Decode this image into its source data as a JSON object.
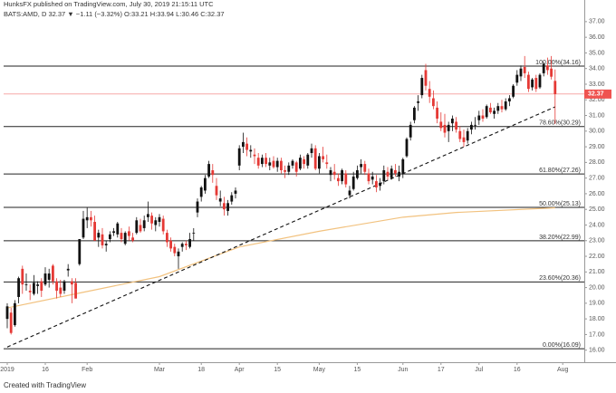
{
  "header": {
    "line1": "HunksFX published on TradingView.com, July 30, 2019 21:15:11 UTC",
    "line2": "BATS:AMD, D  32.37 ▼ −1.11 (−3.32%) O:33.21 H:33.94 L:30.46 C:32.37"
  },
  "footer": "Created with TradingView",
  "chart_data": {
    "type": "candlestick",
    "up_color": "#111111",
    "down_color": "#e53935",
    "xlim": [
      -0.95,
      151.67
    ],
    "ylim": [
      15.23,
      37.34
    ],
    "xticks": [
      {
        "value": 0,
        "label": "2019"
      },
      {
        "value": 10,
        "label": "16"
      },
      {
        "value": 21,
        "label": "Feb"
      },
      {
        "value": 40,
        "label": "Mar"
      },
      {
        "value": 51,
        "label": "18"
      },
      {
        "value": 61,
        "label": "Apr"
      },
      {
        "value": 71,
        "label": "15"
      },
      {
        "value": 82,
        "label": "May"
      },
      {
        "value": 92,
        "label": "15"
      },
      {
        "value": 104,
        "label": "Jun"
      },
      {
        "value": 114,
        "label": "17"
      },
      {
        "value": 124,
        "label": "Jul"
      },
      {
        "value": 134,
        "label": "16"
      },
      {
        "value": 146,
        "label": "Aug"
      }
    ],
    "yticks": [
      {
        "value": 16,
        "label": "16.00"
      },
      {
        "value": 17,
        "label": "17.00"
      },
      {
        "value": 18,
        "label": "18.00"
      },
      {
        "value": 19,
        "label": "19.00"
      },
      {
        "value": 20,
        "label": "20.00"
      },
      {
        "value": 21,
        "label": "21.00"
      },
      {
        "value": 22,
        "label": "22.00"
      },
      {
        "value": 23,
        "label": "23.00"
      },
      {
        "value": 24,
        "label": "24.00"
      },
      {
        "value": 25,
        "label": "25.00"
      },
      {
        "value": 26,
        "label": "26.00"
      },
      {
        "value": 27,
        "label": "27.00"
      },
      {
        "value": 28,
        "label": "28.00"
      },
      {
        "value": 29,
        "label": "29.00"
      },
      {
        "value": 30,
        "label": "30.00"
      },
      {
        "value": 31,
        "label": "31.00"
      },
      {
        "value": 32,
        "label": "32.00"
      },
      {
        "value": 33,
        "label": "33.00"
      },
      {
        "value": 34,
        "label": "34.00"
      },
      {
        "value": 35,
        "label": "35.00"
      },
      {
        "value": 36,
        "label": "36.00"
      },
      {
        "value": 37,
        "label": "37.00"
      }
    ],
    "last_price": 32.37,
    "last_price_color": "#ef5350",
    "fib_levels": [
      {
        "value": 34.16,
        "label": "100.00%(34.16)"
      },
      {
        "value": 30.29,
        "label": "78.60%(30.29)"
      },
      {
        "value": 27.26,
        "label": "61.80%(27.26)"
      },
      {
        "value": 25.13,
        "label": "50.00%(25.13)"
      },
      {
        "value": 22.99,
        "label": "38.20%(22.99)"
      },
      {
        "value": 20.36,
        "label": "23.60%(20.36)"
      },
      {
        "value": 16.09,
        "label": "0.00%(16.09)"
      }
    ],
    "trendline": {
      "x": [
        0,
        144
      ],
      "values": [
        16.2,
        31.55
      ]
    },
    "moving_average": {
      "color": "#f2c27f",
      "x": [
        0,
        20,
        40,
        61,
        82,
        104,
        118,
        144
      ],
      "values": [
        18.7,
        19.7,
        20.7,
        22.6,
        23.6,
        24.5,
        24.8,
        25.1
      ]
    },
    "candles": [
      [
        18.0,
        19.0,
        17.4,
        18.8
      ],
      [
        18.4,
        18.7,
        17.0,
        17.1
      ],
      [
        17.6,
        19.2,
        17.5,
        19.0
      ],
      [
        19.4,
        20.7,
        19.0,
        20.6
      ],
      [
        21.2,
        21.4,
        19.6,
        20.2
      ],
      [
        20.2,
        20.9,
        19.8,
        20.2
      ],
      [
        19.8,
        20.2,
        19.2,
        19.7
      ],
      [
        19.6,
        20.8,
        19.5,
        20.3
      ],
      [
        20.1,
        20.4,
        19.6,
        20.2
      ],
      [
        20.4,
        20.6,
        19.4,
        19.8
      ],
      [
        20.2,
        21.3,
        20.1,
        20.9
      ],
      [
        20.5,
        21.2,
        20.0,
        20.9
      ],
      [
        21.4,
        21.5,
        20.2,
        20.4
      ],
      [
        20.4,
        20.6,
        19.3,
        19.8
      ],
      [
        20.0,
        20.5,
        19.4,
        19.6
      ],
      [
        19.8,
        20.5,
        19.6,
        20.4
      ],
      [
        21.1,
        21.5,
        20.7,
        21.2
      ],
      [
        20.4,
        20.6,
        19.0,
        20.2
      ],
      [
        20.3,
        20.6,
        19.3,
        19.3
      ],
      [
        21.5,
        23.1,
        21.4,
        23.1
      ],
      [
        23.2,
        24.9,
        23.1,
        24.4
      ],
      [
        24.3,
        25.1,
        23.8,
        24.5
      ],
      [
        24.5,
        24.9,
        23.9,
        24.3
      ],
      [
        24.2,
        24.6,
        23.0,
        23.0
      ],
      [
        23.2,
        23.7,
        22.6,
        23.5
      ],
      [
        23.4,
        23.8,
        22.5,
        22.7
      ],
      [
        22.7,
        23.0,
        22.3,
        22.8
      ],
      [
        23.1,
        23.6,
        22.9,
        23.4
      ],
      [
        23.5,
        23.8,
        23.3,
        23.6
      ],
      [
        23.4,
        24.2,
        23.2,
        24.1
      ],
      [
        23.5,
        23.8,
        22.9,
        23.1
      ],
      [
        22.8,
        23.6,
        22.7,
        23.5
      ],
      [
        23.6,
        23.9,
        23.0,
        23.3
      ],
      [
        23.2,
        23.5,
        22.9,
        23.0
      ],
      [
        23.5,
        24.5,
        23.4,
        24.3
      ],
      [
        24.0,
        24.4,
        23.5,
        23.6
      ],
      [
        23.8,
        24.6,
        23.6,
        24.3
      ],
      [
        24.5,
        25.5,
        24.2,
        24.7
      ],
      [
        24.6,
        24.8,
        23.7,
        24.1
      ],
      [
        24.0,
        24.5,
        23.6,
        24.3
      ],
      [
        24.2,
        24.7,
        23.9,
        24.5
      ],
      [
        24.4,
        24.6,
        23.4,
        23.6
      ],
      [
        23.5,
        23.7,
        22.6,
        22.9
      ],
      [
        23.0,
        23.2,
        22.3,
        22.5
      ],
      [
        22.6,
        22.8,
        22.0,
        22.2
      ],
      [
        22.0,
        22.5,
        21.2,
        22.3
      ],
      [
        22.6,
        22.9,
        22.3,
        22.8
      ],
      [
        22.8,
        23.0,
        22.4,
        22.7
      ],
      [
        22.6,
        23.5,
        22.5,
        23.1
      ],
      [
        23.5,
        23.8,
        23.0,
        23.5
      ],
      [
        24.8,
        25.7,
        24.5,
        25.5
      ],
      [
        25.8,
        26.5,
        25.5,
        26.4
      ],
      [
        26.2,
        27.2,
        26.0,
        27.0
      ],
      [
        27.1,
        28.1,
        27.0,
        27.9
      ],
      [
        27.5,
        27.9,
        26.7,
        27.2
      ],
      [
        26.5,
        27.0,
        25.6,
        25.9
      ],
      [
        25.5,
        26.2,
        25.2,
        25.7
      ],
      [
        25.4,
        25.8,
        24.6,
        25.0
      ],
      [
        24.9,
        25.6,
        24.6,
        25.4
      ],
      [
        25.5,
        26.1,
        25.3,
        25.9
      ],
      [
        26.0,
        26.4,
        25.7,
        26.2
      ],
      [
        27.8,
        29.1,
        27.5,
        28.9
      ],
      [
        29.0,
        29.9,
        28.6,
        29.3
      ],
      [
        29.2,
        29.6,
        28.4,
        28.8
      ],
      [
        28.7,
        29.1,
        28.3,
        28.8
      ],
      [
        28.5,
        28.9,
        27.9,
        28.4
      ],
      [
        28.3,
        28.6,
        27.6,
        27.8
      ],
      [
        27.9,
        28.5,
        27.7,
        28.3
      ],
      [
        28.3,
        28.6,
        27.7,
        27.9
      ],
      [
        27.8,
        28.3,
        27.5,
        28.0
      ],
      [
        28.1,
        28.4,
        27.6,
        27.7
      ],
      [
        27.7,
        28.3,
        27.4,
        28.1
      ],
      [
        28.1,
        28.3,
        27.3,
        27.5
      ],
      [
        27.5,
        27.8,
        27.0,
        27.4
      ],
      [
        27.4,
        28.0,
        27.2,
        27.8
      ],
      [
        27.8,
        28.2,
        27.6,
        28.1
      ],
      [
        28.0,
        28.1,
        27.1,
        27.4
      ],
      [
        27.6,
        28.5,
        27.5,
        28.3
      ],
      [
        28.2,
        28.4,
        27.6,
        27.9
      ],
      [
        27.8,
        28.6,
        27.6,
        28.5
      ],
      [
        28.6,
        29.2,
        28.3,
        28.9
      ],
      [
        28.9,
        29.1,
        27.5,
        27.6
      ],
      [
        27.6,
        28.6,
        27.3,
        28.4
      ],
      [
        28.4,
        29.0,
        28.0,
        28.2
      ],
      [
        28.0,
        28.5,
        27.6,
        27.9
      ],
      [
        27.2,
        27.7,
        26.8,
        27.5
      ],
      [
        27.4,
        27.9,
        26.9,
        27.2
      ],
      [
        27.0,
        27.3,
        26.5,
        26.8
      ],
      [
        26.8,
        27.6,
        26.6,
        27.5
      ],
      [
        27.3,
        27.5,
        26.4,
        26.6
      ],
      [
        25.9,
        26.5,
        25.7,
        26.2
      ],
      [
        26.3,
        27.4,
        26.2,
        27.1
      ],
      [
        27.0,
        27.8,
        26.9,
        27.5
      ],
      [
        27.7,
        28.2,
        27.3,
        27.9
      ],
      [
        27.9,
        28.1,
        27.2,
        27.4
      ],
      [
        27.3,
        27.6,
        26.6,
        26.8
      ],
      [
        26.9,
        27.4,
        26.6,
        27.1
      ],
      [
        26.8,
        27.2,
        26.1,
        26.4
      ],
      [
        26.5,
        27.0,
        26.2,
        26.7
      ],
      [
        26.8,
        27.8,
        26.6,
        27.5
      ],
      [
        27.4,
        27.7,
        26.9,
        27.1
      ],
      [
        27.0,
        27.8,
        26.9,
        27.6
      ],
      [
        27.5,
        27.9,
        27.1,
        27.3
      ],
      [
        27.1,
        27.8,
        26.8,
        27.4
      ],
      [
        27.3,
        28.3,
        27.0,
        28.2
      ],
      [
        28.4,
        29.6,
        28.3,
        29.5
      ],
      [
        29.6,
        30.6,
        29.4,
        30.4
      ],
      [
        30.7,
        31.6,
        30.5,
        31.5
      ],
      [
        31.8,
        32.3,
        31.3,
        31.9
      ],
      [
        32.3,
        33.6,
        32.1,
        33.4
      ],
      [
        33.9,
        34.3,
        32.6,
        32.9
      ],
      [
        32.7,
        33.2,
        31.8,
        32.2
      ],
      [
        32.1,
        32.6,
        31.4,
        31.6
      ],
      [
        31.5,
        31.9,
        30.5,
        30.8
      ],
      [
        30.6,
        31.2,
        30.0,
        30.2
      ],
      [
        30.4,
        31.1,
        29.6,
        29.9
      ],
      [
        30.0,
        30.6,
        29.3,
        30.4
      ],
      [
        30.5,
        31.0,
        30.0,
        30.8
      ],
      [
        30.6,
        30.9,
        29.9,
        30.1
      ],
      [
        30.0,
        30.3,
        29.3,
        29.5
      ],
      [
        29.6,
        30.1,
        29.0,
        29.3
      ],
      [
        29.4,
        30.2,
        29.2,
        30.0
      ],
      [
        30.1,
        30.6,
        29.8,
        30.4
      ],
      [
        30.4,
        30.9,
        30.1,
        30.4
      ],
      [
        30.7,
        31.3,
        30.4,
        31.0
      ],
      [
        31.0,
        31.4,
        30.6,
        30.8
      ],
      [
        30.9,
        31.7,
        30.8,
        31.6
      ],
      [
        31.5,
        31.8,
        31.1,
        31.2
      ],
      [
        31.1,
        31.5,
        30.8,
        31.3
      ],
      [
        31.3,
        31.8,
        31.1,
        31.6
      ],
      [
        31.6,
        32.0,
        31.2,
        31.4
      ],
      [
        31.4,
        32.1,
        31.3,
        31.9
      ],
      [
        31.9,
        32.3,
        31.6,
        32.1
      ],
      [
        32.2,
        33.0,
        32.1,
        32.9
      ],
      [
        33.1,
        33.9,
        32.9,
        33.6
      ],
      [
        33.5,
        34.2,
        33.2,
        34.0
      ],
      [
        34.1,
        34.8,
        33.4,
        33.7
      ],
      [
        33.6,
        33.8,
        32.5,
        32.7
      ],
      [
        32.8,
        33.4,
        32.6,
        33.3
      ],
      [
        33.4,
        33.6,
        32.5,
        32.7
      ],
      [
        32.8,
        33.7,
        32.7,
        33.6
      ],
      [
        33.7,
        34.4,
        33.5,
        34.3
      ],
      [
        34.2,
        34.7,
        33.6,
        33.9
      ],
      [
        34.0,
        34.8,
        33.3,
        33.48
      ],
      [
        33.21,
        33.94,
        30.46,
        32.37
      ]
    ]
  }
}
